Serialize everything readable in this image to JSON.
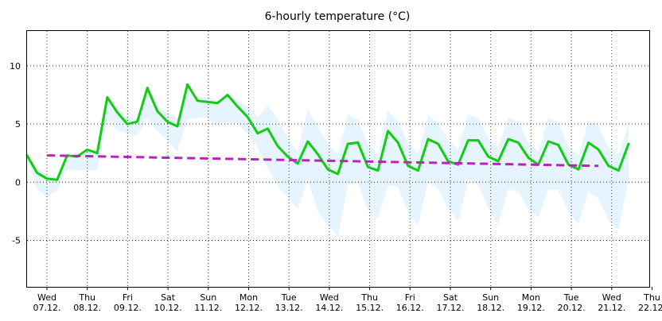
{
  "chart_data": {
    "type": "line",
    "title": "6-hourly temperature (°C)",
    "xlabel": "",
    "ylabel": "",
    "ylim": [
      -9,
      13
    ],
    "yticks": [
      -5,
      0,
      5,
      10
    ],
    "grid": true,
    "day_ticks": [
      {
        "day": "Wed",
        "date": "07.12."
      },
      {
        "day": "Thu",
        "date": "08.12."
      },
      {
        "day": "Fri",
        "date": "09.12."
      },
      {
        "day": "Sat",
        "date": "10.12."
      },
      {
        "day": "Sun",
        "date": "11.12."
      },
      {
        "day": "Mon",
        "date": "12.12."
      },
      {
        "day": "Tue",
        "date": "13.12."
      },
      {
        "day": "Wed",
        "date": "14.12."
      },
      {
        "day": "Thu",
        "date": "15.12."
      },
      {
        "day": "Fri",
        "date": "16.12."
      },
      {
        "day": "Sat",
        "date": "17.12."
      },
      {
        "day": "Sun",
        "date": "18.12."
      },
      {
        "day": "Mon",
        "date": "19.12."
      },
      {
        "day": "Tue",
        "date": "20.12."
      },
      {
        "day": "Wed",
        "date": "21.12."
      },
      {
        "day": "Thu",
        "date": "22.12."
      }
    ],
    "series": [
      {
        "color": "#11cc11",
        "style": "solid",
        "values": [
          2.3,
          0.8,
          0.3,
          0.2,
          2.3,
          2.2,
          2.8,
          2.5,
          7.3,
          6.0,
          5.0,
          5.2,
          8.1,
          6.1,
          5.2,
          4.8,
          8.4,
          7.0,
          6.9,
          6.8,
          7.5,
          6.5,
          5.6,
          4.2,
          4.6,
          3.1,
          2.2,
          1.6,
          3.5,
          2.4,
          1.1,
          0.7,
          3.3,
          3.4,
          1.3,
          1.0,
          4.4,
          3.4,
          1.4,
          1.0,
          3.7,
          3.3,
          1.8,
          1.5,
          3.6,
          3.6,
          2.2,
          1.8,
          3.7,
          3.4,
          2.1,
          1.5,
          3.5,
          3.2,
          1.5,
          1.1,
          3.4,
          2.8,
          1.4,
          1.0,
          3.3
        ]
      },
      {
        "color": "#bb22bb",
        "style": "dashed",
        "start": 2,
        "values_linear": [
          2.3,
          1.4
        ]
      }
    ],
    "range_band": {
      "color": "#e6f4ff",
      "start": 0,
      "upper": [
        2.3,
        1.3,
        0.6,
        0.5,
        2.3,
        2.2,
        2.8,
        2.8,
        7.2,
        6.3,
        5.6,
        5.4,
        8.0,
        6.5,
        6.0,
        5.5,
        8.2,
        7.3,
        7.3,
        7.0,
        7.6,
        7.0,
        6.5,
        5.6,
        6.6,
        5.4,
        3.8,
        2.6,
        6.3,
        4.8,
        3.3,
        2.4,
        5.8,
        5.4,
        3.3,
        2.4,
        6.1,
        5.2,
        3.4,
        2.4,
        5.8,
        5.0,
        3.6,
        2.8,
        5.8,
        5.5,
        3.8,
        3.0,
        5.5,
        5.2,
        3.4,
        2.6,
        5.6,
        5.1,
        3.0,
        2.3,
        5.3,
        4.8,
        3.0,
        2.4,
        5.0
      ],
      "lower": [
        2.3,
        -0.6,
        -1.3,
        -0.7,
        1.1,
        1.0,
        1.0,
        1.0,
        5.5,
        4.4,
        4.2,
        4.0,
        5.5,
        4.4,
        3.6,
        2.6,
        5.4,
        5.5,
        5.6,
        4.8,
        5.2,
        5.0,
        4.2,
        3.0,
        1.2,
        -0.3,
        -1.3,
        -2.3,
        0.2,
        -2.5,
        -3.7,
        -4.7,
        -0.2,
        -0.1,
        -2.4,
        -3.2,
        -0.3,
        -0.4,
        -2.6,
        -3.7,
        0.0,
        -0.6,
        -2.2,
        -3.4,
        0.2,
        -0.2,
        -2.2,
        -3.7,
        -0.6,
        -0.8,
        -2.3,
        -3.0,
        -0.6,
        -0.7,
        -2.6,
        -3.6,
        -0.8,
        -1.4,
        -3.3,
        -4.1,
        0.2
      ]
    }
  }
}
